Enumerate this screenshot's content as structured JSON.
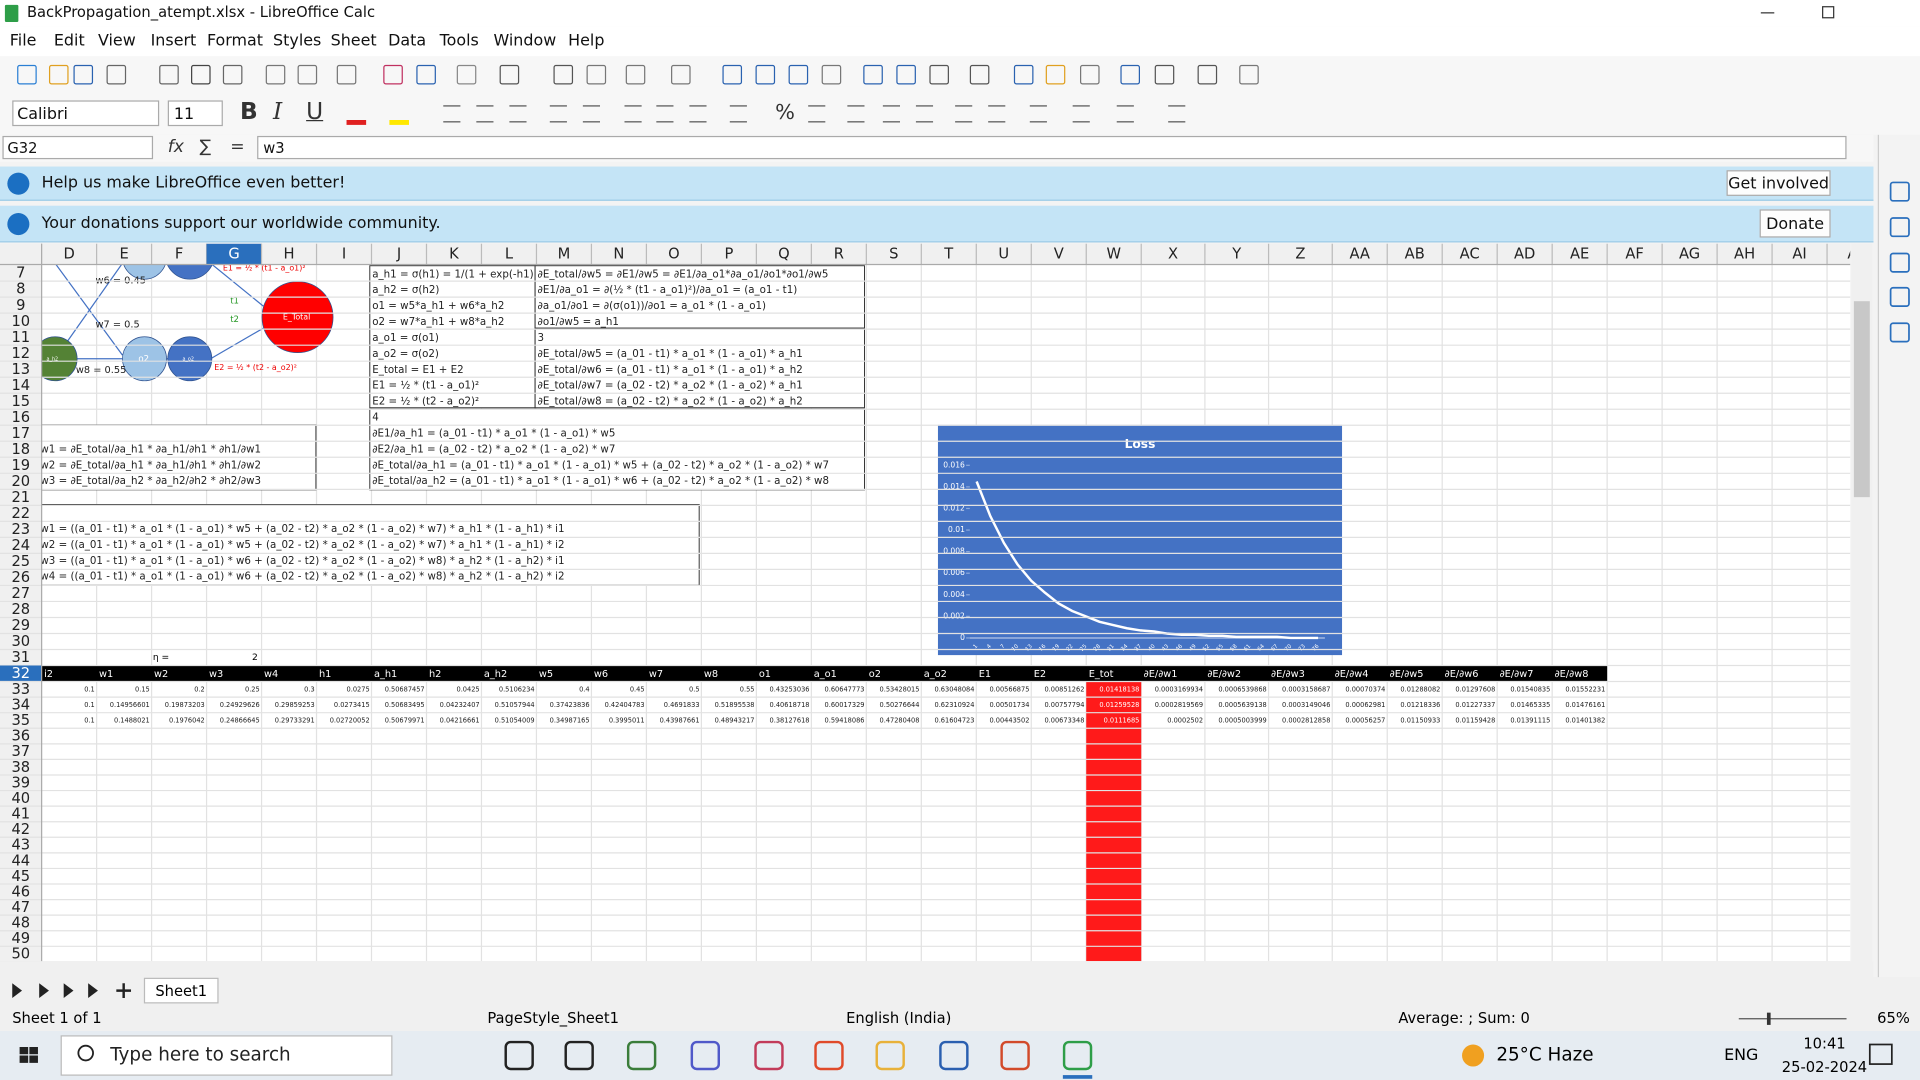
{
  "window": {
    "title": "BackPropagation_atempt.xlsx - LibreOffice Calc",
    "menus": [
      "File",
      "Edit",
      "View",
      "Insert",
      "Format",
      "Styles",
      "Sheet",
      "Data",
      "Tools",
      "Window",
      "Help"
    ],
    "font_name": "Calibri",
    "font_size": "11",
    "format_buttons": [
      "B",
      "I",
      "U"
    ],
    "percent": "%",
    "name_box": "G32",
    "formula_icons": [
      "fx",
      "∑",
      "="
    ],
    "formula": "w3",
    "infobars": [
      {
        "text": "Help us make LibreOffice even better!",
        "button": "Get involved"
      },
      {
        "text": "Your donations support our worldwide community.",
        "button": "Donate"
      }
    ]
  },
  "sheet": {
    "columns": [
      "D",
      "E",
      "F",
      "G",
      "H",
      "I",
      "J",
      "K",
      "L",
      "M",
      "N",
      "O",
      "P",
      "Q",
      "R",
      "S",
      "T",
      "U",
      "V",
      "W",
      "X",
      "Y",
      "Z",
      "AA",
      "AB",
      "AC",
      "AD",
      "AE",
      "AF",
      "AG",
      "AH",
      "AI",
      "AJ"
    ],
    "rows": [
      7,
      8,
      9,
      10,
      11,
      12,
      13,
      14,
      15,
      16,
      17,
      18,
      19,
      20,
      21,
      22,
      23,
      24,
      25,
      26,
      27,
      28,
      29,
      30,
      31,
      32,
      33,
      34,
      35,
      36,
      37,
      38,
      39,
      40,
      41,
      42,
      43,
      44,
      45,
      46,
      47,
      48,
      49,
      50
    ],
    "eta_label": "η =",
    "eta_value": 2,
    "header_row": [
      "i2",
      "w1",
      "w2",
      "w3",
      "w4",
      "h1",
      "a_h1",
      "h2",
      "a_h2",
      "w5",
      "w6",
      "w7",
      "w8",
      "o1",
      "a_o1",
      "o2",
      "a_o2",
      "E1",
      "E2",
      "E_tot",
      "∂E/∂w1",
      "∂E/∂w2",
      "∂E/∂w3",
      "∂E/∂w4",
      "∂E/∂w5",
      "∂E/∂w6",
      "∂E/∂w7",
      "∂E/∂w8"
    ],
    "data_rows": [
      [
        0.1,
        0.15,
        0.2,
        0.25,
        0.3,
        0.0275,
        0.50687457,
        0.0425,
        0.5106234,
        0.4,
        0.45,
        0.5,
        0.55,
        0.43253036,
        0.60647773,
        0.53428015,
        0.63048084,
        0.00566875,
        0.00851262,
        0.01418138,
        0.0003169934,
        0.0006539868,
        0.0003158687,
        0.00070374,
        0.01288082,
        0.01297608,
        0.01540835,
        0.01552231
      ],
      [
        0.1,
        0.14956601,
        0.19873203,
        0.24929626,
        0.29859253,
        0.0273415,
        0.50683495,
        0.04232407,
        0.51057944,
        0.37423836,
        0.42404783,
        0.4691833,
        0.51895538,
        0.40618718,
        0.60017329,
        0.50276644,
        0.62310924,
        0.00501734,
        0.00757794,
        0.01259528,
        0.0002819569,
        0.0005639138,
        0.0003149046,
        0.00062981,
        0.01218336,
        0.01227337,
        0.01465335,
        0.01476161
      ],
      [
        0.1,
        0.1488021,
        0.1976042,
        0.24866645,
        0.29733291,
        0.02720052,
        0.50679971,
        0.04216661,
        0.51054009,
        0.34987165,
        0.3995011,
        0.43987661,
        0.48943217,
        0.38127618,
        0.59418086,
        0.47280408,
        0.61604723,
        0.00443502,
        0.00673348,
        0.0111685,
        0.0002502,
        0.0005003999,
        0.0002812858,
        0.00056257,
        0.01150933,
        0.01159428,
        0.01391115,
        0.01401382
      ]
    ],
    "text_boxes": [
      {
        "lines": [
          "a_h1 = σ(h1) = 1/(1 + exp(-h1))",
          "a_h2 = σ(h2)",
          "o1 = w5*a_h1 + w6*a_h2",
          "o2 = w7*a_h1 + w8*a_h2",
          "a_o1 = σ(o1)",
          "a_o2 = σ(o2)",
          "E_total = E1 + E2",
          "E1 = ½ * (t1 - a_o1)²",
          "E2 = ½ * (t2 - a_o2)²"
        ]
      },
      {
        "lines": [
          "∂E_total/∂w5 = ∂E1/∂w5 = ∂E1/∂a_o1*∂a_o1/∂o1*∂o1/∂w5",
          "∂E1/∂a_o1 = ∂(½ * (t1 - a_o1)²)/∂a_o1 = (a_o1 - t1)",
          "∂a_o1/∂o1 = ∂(σ(o1))/∂o1 = a_o1 * (1 - a_o1)",
          "∂o1/∂w5 = a_h1"
        ]
      },
      {
        "lines": [
          "3",
          "∂E_total/∂w5 = (a_01 - t1) * a_o1 * (1 - a_o1) *  a_h1",
          "∂E_total/∂w6 = (a_01 - t1) * a_o1 * (1 - a_o1) *  a_h2",
          "∂E_total/∂w7 = (a_02 - t2) * a_o2 * (1 - a_o2) *  a_h1",
          "∂E_total/∂w8 = (a_02 - t2) * a_o2 * (1 - a_o2) *  a_h2"
        ]
      },
      {
        "lines": [
          "4",
          "∂E1/∂a_h1 = (a_01 - t1) * a_o1 * (1 - a_o1) * w5",
          "∂E2/∂a_h1 = (a_02 - t2) * a_o2 * (1 - a_o2) * w7",
          "∂E_total/∂a_h1 = (a_01 - t1) * a_o1 * (1 - a_o1) * w5 +  (a_02 - t2) * a_o2 * (1 - a_o2) * w7",
          "∂E_total/∂a_h2 = (a_01 - t1) * a_o1 * (1 - a_o1) * w6 +  (a_02 - t2) * a_o2 * (1 - a_o2) * w8"
        ]
      },
      {
        "lines": [
          "w1 = ∂E_total/∂a_h1 * ∂a_h1/∂h1 * ∂h1/∂w1",
          "w2 = ∂E_total/∂a_h1 * ∂a_h1/∂h1 * ∂h1/∂w2",
          "w3 = ∂E_total/∂a_h2 * ∂a_h2/∂h2 * ∂h2/∂w3"
        ]
      },
      {
        "lines": [
          "w1 = ((a_01 - t1) * a_o1 * (1 - a_o1) * w5 + (a_02 - t2) * a_o2 * (1 - a_o2) * w7) * a_h1 * (1 - a_h1) * i1",
          "w2 = ((a_01 - t1) * a_o1 * (1 - a_o1) * w5 + (a_02 - t2) * a_o2 * (1 - a_o2) * w7) * a_h1 * (1 - a_h1) * i2",
          "w3 = ((a_01 - t1) * a_o1 * (1 - a_o1) * w6 + (a_02 - t2) * a_o2 * (1 - a_o2) * w8) * a_h2 * (1 - a_h2) * i1",
          "w4 = ((a_01 - t1) * a_o1 * (1 - a_o1) * w6 + (a_02 - t2) * a_o2 * (1 - a_o2) * w8) * a_h2 * (1 - a_h2) * i2"
        ]
      }
    ],
    "diagram": {
      "w6": "w6 = 0.45",
      "w7": "w7 = 0.5",
      "w8": "w8 = 0.55",
      "a_h2": "a_h2",
      "o2": "o2",
      "a_o2": "a_o2",
      "e_total": "E_Total",
      "e1": "E1 = ½ * (t1 - a_o1)²",
      "e2": "E2 = ½ * (t2 - a_o2)²",
      "t1": "t1",
      "t2": "t2"
    }
  },
  "chart_data": {
    "type": "line",
    "title": "Loss",
    "color": "#ffffff",
    "background": "#4472c4",
    "categories": [
      "1",
      "4",
      "7",
      "10",
      "13",
      "16",
      "19",
      "22",
      "25",
      "28",
      "31",
      "34",
      "37",
      "40",
      "43",
      "46",
      "49",
      "52",
      "55",
      "58",
      "61",
      "64",
      "67",
      "70",
      "73",
      "76"
    ],
    "values": [
      0.0145,
      0.0113,
      0.0088,
      0.0068,
      0.0053,
      0.0042,
      0.0032,
      0.0025,
      0.002,
      0.0015,
      0.0012,
      0.0009,
      0.0007,
      0.0006,
      0.0004,
      0.0003,
      0.0003,
      0.0002,
      0.0002,
      0.0001,
      0.0001,
      0.0001,
      0.0001,
      0,
      0,
      0
    ],
    "ylim": [
      0,
      0.016
    ],
    "yticks": [
      0,
      0.002,
      0.004,
      0.006,
      0.008,
      0.01,
      0.012,
      0.014,
      0.016
    ]
  },
  "sheet_tab": "Sheet1",
  "status_bar": {
    "sheet": "Sheet 1 of 1",
    "page_style": "PageStyle_Sheet1",
    "language": "English (India)",
    "summary": "Average: ; Sum: 0",
    "zoom": "65%"
  },
  "taskbar": {
    "search": "Type here to search",
    "weather": "25°C Haze",
    "language": "ENG",
    "time": "10:41",
    "date": "25-02-2024"
  }
}
